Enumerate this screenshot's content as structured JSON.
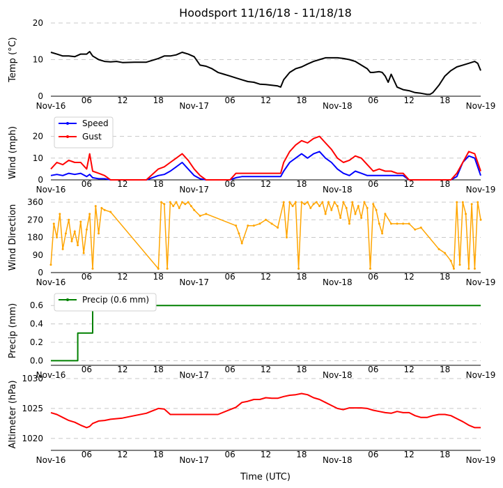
{
  "title": "Hoodsport 11/16/18 - 11/18/18",
  "xlabel": "Time (UTC)",
  "x_ticks": [
    {
      "h": 0,
      "label": "Nov-16",
      "major": true
    },
    {
      "h": 6,
      "label": "06"
    },
    {
      "h": 12,
      "label": "12"
    },
    {
      "h": 18,
      "label": "18"
    },
    {
      "h": 24,
      "label": "Nov-17",
      "major": true
    },
    {
      "h": 30,
      "label": "06"
    },
    {
      "h": 36,
      "label": "12"
    },
    {
      "h": 42,
      "label": "18"
    },
    {
      "h": 48,
      "label": "Nov-18",
      "major": true
    },
    {
      "h": 54,
      "label": "06"
    },
    {
      "h": 60,
      "label": "12"
    },
    {
      "h": 66,
      "label": "18"
    },
    {
      "h": 72,
      "label": "Nov-19",
      "major": true
    }
  ],
  "colors": {
    "temp": "#000000",
    "speed": "#0000ff",
    "gust": "#ff0000",
    "dir": "#ffa500",
    "precip": "#008000",
    "alt": "#ff0000",
    "grid": "#c8c8c8"
  },
  "chart_data": [
    {
      "type": "line",
      "name": "temp",
      "ylabel": "Temp (°C)",
      "ylim": [
        0,
        20
      ],
      "yticks": [
        0,
        10,
        20
      ],
      "legend": null,
      "series": [
        {
          "name": "Temp",
          "color": "#000000",
          "x": [
            0,
            1,
            2,
            3,
            4,
            5,
            6,
            6.5,
            7,
            8,
            9,
            10,
            11,
            12,
            14,
            16,
            18,
            19,
            20,
            21,
            22,
            23,
            24,
            25,
            26,
            27,
            28,
            29,
            30,
            31,
            32,
            33,
            34,
            35,
            36,
            37,
            38,
            38.5,
            39,
            40,
            41,
            42,
            43,
            44,
            45,
            46,
            47,
            48,
            49,
            50,
            51,
            52,
            53,
            53.5,
            54,
            55,
            55.5,
            56,
            56.5,
            57,
            58,
            59,
            60,
            61,
            62,
            63,
            63.5,
            64,
            65,
            66,
            67,
            68,
            69,
            70,
            71,
            71.5,
            72
          ],
          "y": [
            12,
            11.5,
            11,
            11,
            10.8,
            11.5,
            11.5,
            12.2,
            11,
            10,
            9.5,
            9.4,
            9.5,
            9.2,
            9.3,
            9.3,
            10.3,
            11,
            11,
            11.3,
            12,
            11.5,
            10.8,
            8.5,
            8.2,
            7.5,
            6.5,
            6,
            5.5,
            5,
            4.5,
            4,
            3.8,
            3.3,
            3.2,
            3,
            2.8,
            2.5,
            4.5,
            6.5,
            7.5,
            8,
            8.8,
            9.5,
            10,
            10.5,
            10.5,
            10.5,
            10.3,
            10,
            9.5,
            8.5,
            7.5,
            6.5,
            6.5,
            6.7,
            6.5,
            5.5,
            3.8,
            6,
            2.5,
            1.8,
            1.5,
            1,
            0.8,
            0.5,
            0.5,
            1,
            3,
            5.5,
            7,
            8,
            8.5,
            9,
            9.5,
            9,
            7
          ]
        }
      ]
    },
    {
      "type": "line",
      "name": "wind",
      "ylabel": "Wind (mph)",
      "ylim": [
        0,
        25
      ],
      "yticks": [
        0,
        10,
        20
      ],
      "legend": "top-left",
      "series": [
        {
          "name": "Speed",
          "color": "#0000ff",
          "x": [
            0,
            1,
            2,
            3,
            4,
            5,
            6,
            6.5,
            7,
            8,
            9,
            10,
            11,
            12,
            14,
            16,
            18,
            19,
            20,
            21,
            22,
            23,
            24,
            25,
            26,
            27,
            28,
            29,
            30,
            31,
            32,
            33,
            34,
            35,
            36,
            37,
            38,
            38.5,
            39,
            40,
            41,
            42,
            43,
            44,
            45,
            46,
            47,
            48,
            49,
            50,
            51,
            52,
            53,
            54,
            55,
            56,
            57,
            58,
            59,
            60,
            61,
            62,
            63,
            64,
            65,
            66,
            67,
            68,
            69,
            70,
            71,
            72
          ],
          "y": [
            2,
            2.5,
            2,
            3,
            2.5,
            3,
            1.5,
            2.5,
            1,
            0.5,
            0.5,
            0,
            0,
            0,
            0,
            0,
            2,
            2.5,
            4,
            6,
            8,
            5,
            2,
            0.5,
            0,
            0,
            0,
            0,
            0,
            1,
            1.5,
            1.5,
            1.5,
            1.5,
            1.5,
            1.5,
            1.5,
            1.5,
            4,
            8,
            10,
            12,
            10,
            12,
            13,
            10,
            8,
            5,
            3,
            2,
            4,
            3,
            2,
            2,
            2,
            2,
            2,
            2,
            2,
            0,
            0,
            0,
            0,
            0,
            0,
            0,
            0,
            1.5,
            8,
            11,
            10,
            2
          ]
        },
        {
          "name": "Gust",
          "color": "#ff0000",
          "x": [
            0,
            1,
            2,
            3,
            4,
            5,
            6,
            6.5,
            7,
            8,
            9,
            10,
            11,
            12,
            14,
            16,
            18,
            19,
            20,
            21,
            22,
            23,
            24,
            25,
            26,
            27,
            28,
            29,
            30,
            31,
            32,
            33,
            34,
            35,
            36,
            37,
            38,
            38.5,
            39,
            40,
            41,
            42,
            43,
            44,
            45,
            46,
            47,
            48,
            49,
            50,
            51,
            52,
            53,
            54,
            55,
            56,
            57,
            58,
            59,
            60,
            61,
            62,
            63,
            64,
            65,
            66,
            67,
            68,
            69,
            70,
            71,
            72
          ],
          "y": [
            5,
            8,
            7,
            9,
            8,
            8,
            5,
            12,
            4,
            3,
            2,
            0,
            0,
            0,
            0,
            0,
            5,
            6,
            8,
            10,
            12,
            9,
            5,
            2,
            0,
            0,
            0,
            0,
            0,
            3,
            3,
            3,
            3,
            3,
            3,
            3,
            3,
            3,
            8,
            13,
            16,
            18,
            17,
            19,
            20,
            17,
            14,
            10,
            8,
            9,
            11,
            10,
            7,
            4,
            5,
            4,
            4,
            3,
            3,
            0,
            0,
            0,
            0,
            0,
            0,
            0,
            0,
            3,
            8,
            13,
            12,
            4
          ]
        }
      ]
    },
    {
      "type": "scatter",
      "name": "dir",
      "ylabel": "Wind Direction",
      "ylim": [
        0,
        360
      ],
      "yticks": [
        0,
        90,
        180,
        270,
        360
      ],
      "legend": null,
      "series": [
        {
          "name": "Direction",
          "color": "#ffa500",
          "x": [
            0,
            0.5,
            1,
            1.5,
            2,
            2.5,
            3,
            3.5,
            4,
            4.5,
            5,
            5.5,
            6,
            6.5,
            7,
            7.5,
            8,
            8.5,
            9,
            10,
            18,
            18.5,
            19,
            19.5,
            20,
            20.5,
            21,
            21.5,
            22,
            22.5,
            23,
            23.5,
            24,
            25,
            26,
            31,
            31.5,
            32,
            33,
            34,
            35,
            36,
            37,
            38,
            39,
            39.5,
            40,
            40.5,
            41,
            41.5,
            42,
            42.5,
            43,
            43.5,
            44,
            44.5,
            45,
            45.5,
            46,
            46.5,
            47,
            47.5,
            48,
            48.5,
            49,
            49.5,
            50,
            50.5,
            51,
            51.5,
            52,
            52.5,
            53,
            53.5,
            54,
            54.5,
            55,
            55.5,
            56,
            57,
            58,
            59,
            60,
            61,
            62,
            65,
            66,
            67,
            67.5,
            68,
            68.5,
            69,
            69.5,
            70,
            70.5,
            71,
            71.5,
            72
          ],
          "y": [
            40,
            250,
            180,
            300,
            120,
            200,
            270,
            160,
            210,
            140,
            260,
            100,
            220,
            300,
            20,
            340,
            200,
            330,
            320,
            310,
            20,
            360,
            350,
            20,
            360,
            340,
            360,
            330,
            360,
            350,
            360,
            340,
            320,
            290,
            300,
            240,
            200,
            150,
            240,
            240,
            250,
            270,
            250,
            230,
            360,
            180,
            360,
            340,
            360,
            20,
            360,
            350,
            360,
            330,
            350,
            360,
            340,
            360,
            300,
            360,
            320,
            360,
            340,
            280,
            360,
            330,
            250,
            360,
            300,
            340,
            280,
            360,
            330,
            20,
            350,
            320,
            250,
            200,
            300,
            250,
            250,
            250,
            250,
            220,
            230,
            120,
            100,
            60,
            20,
            360,
            40,
            360,
            300,
            20,
            350,
            20,
            360,
            270
          ]
        }
      ]
    },
    {
      "type": "step",
      "name": "precip",
      "ylabel": "Precip (mm)",
      "ylim": [
        -0.05,
        0.7
      ],
      "yticks": [
        0,
        0.2,
        0.4,
        0.6
      ],
      "ytick_labels": [
        "0.0",
        "0.2",
        "0.4",
        "0.6"
      ],
      "legend": "top-left",
      "series": [
        {
          "name": "Precip (0.6 mm)",
          "color": "#008000",
          "x": [
            0,
            4.5,
            4.5,
            7,
            7,
            72
          ],
          "y": [
            0,
            0,
            0.3,
            0.3,
            0.6,
            0.6
          ]
        }
      ]
    },
    {
      "type": "line",
      "name": "alt",
      "ylabel": "Altimeter (hPa)",
      "ylim": [
        1018,
        1030
      ],
      "yticks": [
        1020,
        1025,
        1030
      ],
      "legend": null,
      "series": [
        {
          "name": "Altimeter",
          "color": "#ff0000",
          "x": [
            0,
            1,
            2,
            3,
            4,
            5,
            6,
            6.5,
            7,
            8,
            9,
            10,
            12,
            14,
            16,
            18,
            19,
            20,
            22,
            24,
            26,
            28,
            30,
            31,
            32,
            33,
            34,
            35,
            36,
            37,
            38,
            39,
            40,
            41,
            42,
            43,
            44,
            45,
            46,
            47,
            48,
            49,
            50,
            51,
            52,
            53,
            54,
            55,
            56,
            57,
            58,
            59,
            60,
            61,
            62,
            63,
            64,
            65,
            66,
            67,
            68,
            69,
            70,
            71,
            72
          ],
          "y": [
            1024.3,
            1024,
            1023.5,
            1023,
            1022.7,
            1022.2,
            1021.8,
            1022,
            1022.5,
            1022.9,
            1023,
            1023.2,
            1023.4,
            1023.8,
            1024.2,
            1025,
            1024.9,
            1024,
            1024,
            1024,
            1024,
            1024,
            1024.8,
            1025.2,
            1026,
            1026.2,
            1026.5,
            1026.5,
            1026.8,
            1026.7,
            1026.7,
            1027,
            1027.2,
            1027.3,
            1027.5,
            1027.3,
            1026.8,
            1026.5,
            1026,
            1025.5,
            1025,
            1024.8,
            1025.1,
            1025.1,
            1025.1,
            1025,
            1024.7,
            1024.5,
            1024.3,
            1024.2,
            1024.5,
            1024.3,
            1024.3,
            1023.8,
            1023.5,
            1023.5,
            1023.8,
            1024,
            1024,
            1023.8,
            1023.3,
            1022.8,
            1022.2,
            1021.8,
            1021.8
          ]
        }
      ]
    }
  ]
}
